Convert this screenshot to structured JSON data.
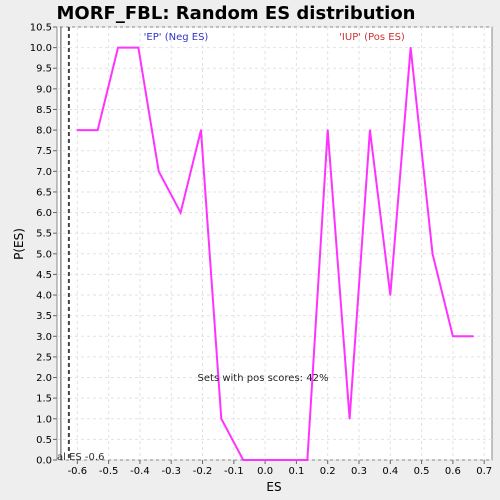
{
  "chart_data": {
    "type": "line",
    "title": "MORF_FBL: Random ES distribution",
    "xlabel": "ES",
    "ylabel": "P(ES)",
    "xlim": [
      -0.665,
      0.725
    ],
    "ylim": [
      0,
      10.5
    ],
    "x_ticks": [
      "-0.6",
      "-0.5",
      "-0.4",
      "-0.3",
      "-0.2",
      "-0.1",
      "0.0",
      "0.1",
      "0.2",
      "0.3",
      "0.4",
      "0.5",
      "0.6",
      "0.7"
    ],
    "y_ticks": [
      "0.0",
      "0.5",
      "1.0",
      "1.5",
      "2.0",
      "2.5",
      "3.0",
      "3.5",
      "4.0",
      "4.5",
      "5.0",
      "5.5",
      "6.0",
      "6.5",
      "7.0",
      "7.5",
      "8.0",
      "8.5",
      "9.0",
      "9.5",
      "10.0",
      "10.5"
    ],
    "grid": true,
    "series": [
      {
        "color": "#ff33ff",
        "x": [
          -0.6,
          -0.535,
          -0.47,
          -0.405,
          -0.34,
          -0.27,
          -0.205,
          -0.14,
          -0.07,
          0.0,
          0.065,
          0.135,
          0.2,
          0.27,
          0.335,
          0.4,
          0.465,
          0.535,
          0.6,
          0.665
        ],
        "y": [
          8.0,
          8.0,
          10.0,
          10.0,
          7.0,
          6.0,
          8.0,
          1.0,
          0.0,
          0.0,
          0.0,
          0.0,
          8.0,
          1.0,
          8.0,
          4.0,
          10.0,
          5.0,
          3.0,
          3.0
        ]
      }
    ],
    "annotations": {
      "neg_label": "'EP' (Neg ES)",
      "neg_color": "#3333cc",
      "pos_label": "'IUP' (Pos ES)",
      "pos_color": "#cc3333",
      "sets_text": "Sets with pos scores: 42%",
      "actual_es_label": "al ES -0.6",
      "actual_es_value": -0.627
    }
  }
}
